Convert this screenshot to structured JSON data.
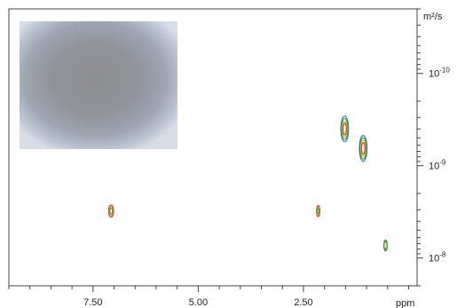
{
  "chart_data": {
    "type": "scatter",
    "title": "",
    "x_axis": {
      "label": "ppm",
      "range": [
        9.5,
        -0.2
      ],
      "reversed": true,
      "major_ticks": [
        7.5,
        5.0,
        2.5
      ],
      "tick_labels": [
        "7.50",
        "5.00",
        "2.50"
      ],
      "minor_step": 0.5
    },
    "y_axis": {
      "label": "m²/s",
      "scale": "log",
      "range": [
        2e-11,
        2e-08
      ],
      "reversed": true,
      "position": "right",
      "major_ticks": [
        1e-10,
        1e-09,
        1e-08
      ],
      "tick_labels": [
        {
          "base": "10",
          "exp": "-10"
        },
        {
          "base": "10",
          "exp": "-9"
        },
        {
          "base": "10",
          "exp": "-8"
        }
      ]
    },
    "grid": false,
    "inset_image": "microscopy-micrograph",
    "peaks": [
      {
        "ppm": 7.07,
        "D": 3.1e-09,
        "ppm_width": 0.12,
        "log_span": 0.13,
        "colors": [
          "#d9261c",
          "#f39a1e",
          "#2a9d3a"
        ]
      },
      {
        "ppm": 2.15,
        "D": 3.1e-09,
        "ppm_width": 0.08,
        "log_span": 0.12,
        "colors": [
          "#d9261c",
          "#f39a1e",
          "#2a9d3a"
        ]
      },
      {
        "ppm": 1.52,
        "D": 4e-10,
        "ppm_width": 0.18,
        "log_span": 0.28,
        "colors": [
          "#1a6fb3",
          "#2a9d3a",
          "#f1c21b",
          "#d9261c"
        ]
      },
      {
        "ppm": 1.08,
        "D": 6.5e-10,
        "ppm_width": 0.18,
        "log_span": 0.28,
        "colors": [
          "#1a6fb3",
          "#2a9d3a",
          "#f1c21b",
          "#d9261c"
        ]
      },
      {
        "ppm": 0.55,
        "D": 7.3e-09,
        "ppm_width": 0.08,
        "log_span": 0.12,
        "colors": [
          "#2a9d3a",
          "#1a6fb3",
          "#f1c21b"
        ]
      }
    ]
  }
}
